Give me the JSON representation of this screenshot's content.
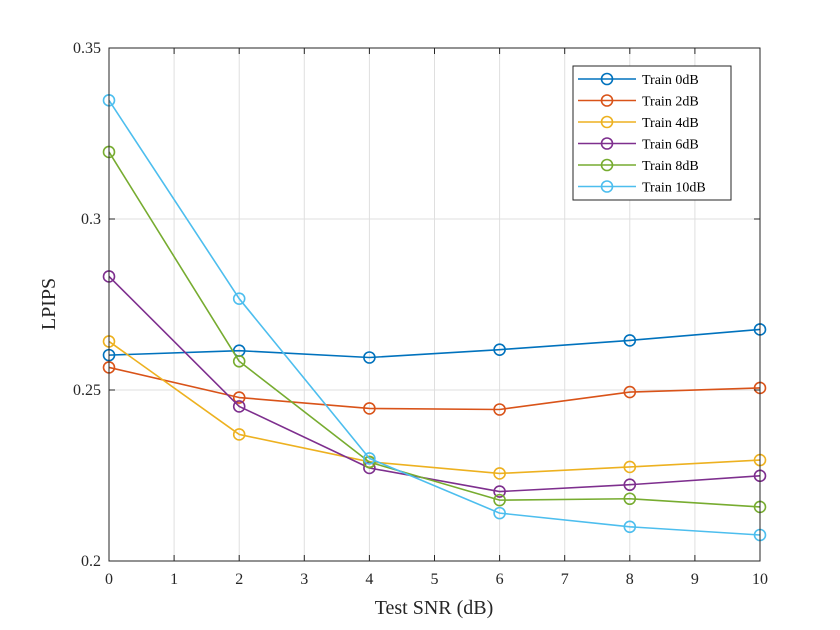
{
  "chart_data": {
    "type": "line",
    "title": "",
    "xlabel": "Test SNR (dB)",
    "ylabel": "LPIPS",
    "xlim": [
      0,
      10
    ],
    "ylim": [
      0.2,
      0.35
    ],
    "xticks": [
      0,
      1,
      2,
      3,
      4,
      5,
      6,
      7,
      8,
      9,
      10
    ],
    "xtick_labels": [
      "0",
      "1",
      "2",
      "3",
      "4",
      "5",
      "6",
      "7",
      "8",
      "9",
      "10"
    ],
    "yticks": [
      0.2,
      0.25,
      0.3,
      0.35
    ],
    "ytick_labels": [
      "0.2",
      "0.25",
      "0.3",
      "0.35"
    ],
    "grid": true,
    "legend_position": "top-right",
    "x": [
      0,
      2,
      4,
      6,
      8,
      10
    ],
    "series": [
      {
        "name": "Train 0dB",
        "color": "#0072BD",
        "values": [
          0.2602,
          0.2615,
          0.2595,
          0.2618,
          0.2645,
          0.2677
        ]
      },
      {
        "name": "Train 2dB",
        "color": "#D95319",
        "values": [
          0.2566,
          0.2478,
          0.2446,
          0.2443,
          0.2494,
          0.2506
        ]
      },
      {
        "name": "Train 4dB",
        "color": "#EDB120",
        "values": [
          0.2642,
          0.237,
          0.229,
          0.2256,
          0.2275,
          0.2295
        ]
      },
      {
        "name": "Train 6dB",
        "color": "#7E2F8E",
        "values": [
          0.2832,
          0.2452,
          0.2272,
          0.2203,
          0.2223,
          0.2249
        ]
      },
      {
        "name": "Train 8dB",
        "color": "#77AC30",
        "values": [
          0.3196,
          0.2584,
          0.2289,
          0.2178,
          0.2182,
          0.2158
        ]
      },
      {
        "name": "Train 10dB",
        "color": "#4DBEEE",
        "values": [
          0.3347,
          0.2767,
          0.23,
          0.214,
          0.21,
          0.2076
        ]
      }
    ]
  }
}
